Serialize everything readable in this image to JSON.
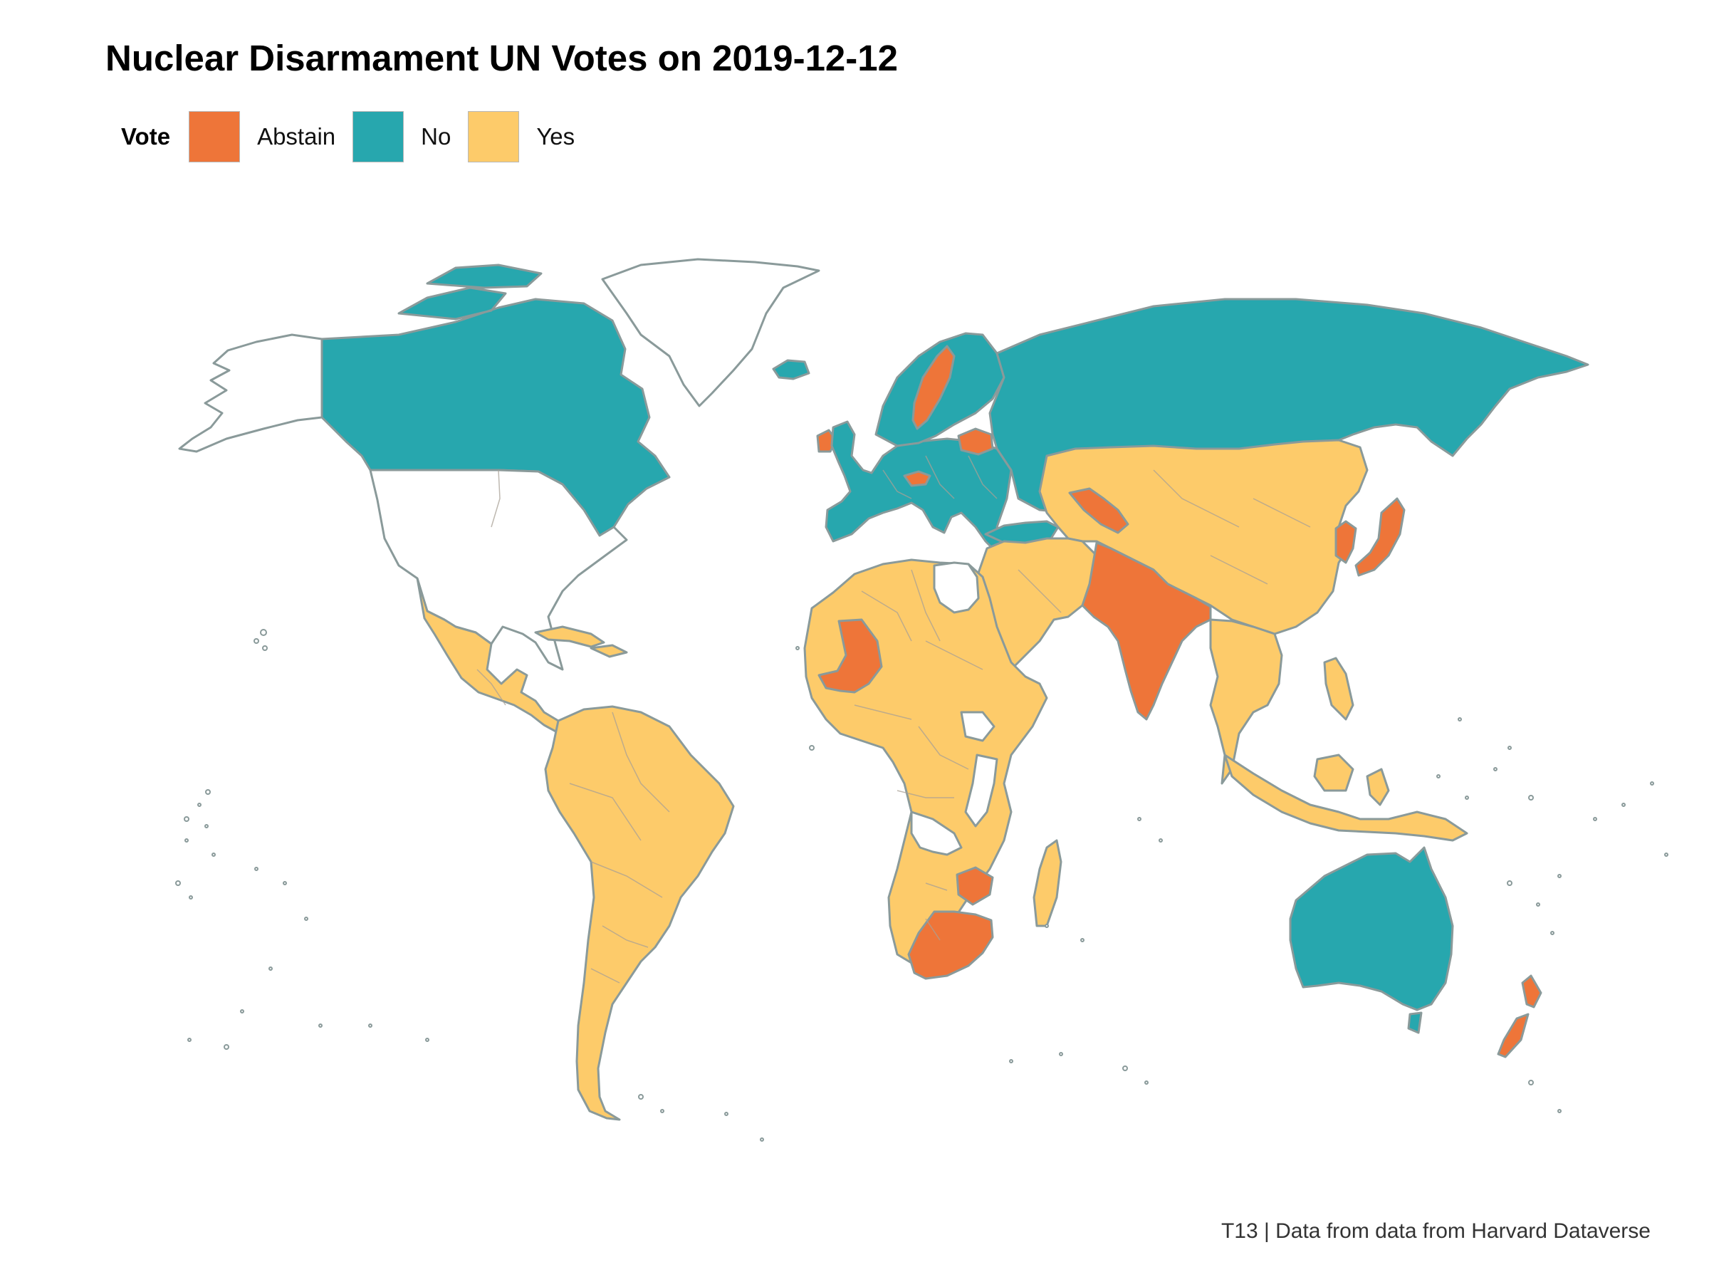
{
  "title": "Nuclear Disarmament UN Votes on 2019-12-12",
  "legend": {
    "title": "Vote",
    "items": [
      {
        "label": "Abstain",
        "color": "#EE7539"
      },
      {
        "label": "No",
        "color": "#27A7AE"
      },
      {
        "label": "Yes",
        "color": "#FDCB6A"
      }
    ]
  },
  "caption": "T13 | Data from data from Harvard Dataverse",
  "colors": {
    "border": "#8a9a9a",
    "missing": "#ffffff"
  },
  "regions": [
    {
      "name": "Alaska",
      "vote": null
    },
    {
      "name": "Canada",
      "vote": "No"
    },
    {
      "name": "Greenland",
      "vote": null
    },
    {
      "name": "United States",
      "vote": null
    },
    {
      "name": "Mexico and Central America",
      "vote": "Yes"
    },
    {
      "name": "Cuba",
      "vote": "Yes"
    },
    {
      "name": "South America",
      "vote": "Yes"
    },
    {
      "name": "Iceland",
      "vote": "No"
    },
    {
      "name": "Ireland",
      "vote": "Abstain"
    },
    {
      "name": "Western Europe",
      "vote": "No"
    },
    {
      "name": "Scandinavia",
      "vote": "No"
    },
    {
      "name": "Sweden",
      "vote": "Abstain"
    },
    {
      "name": "Belarus",
      "vote": "Abstain"
    },
    {
      "name": "Austria",
      "vote": "Abstain"
    },
    {
      "name": "Russia",
      "vote": "No"
    },
    {
      "name": "Turkey",
      "vote": "No"
    },
    {
      "name": "Central Asia, China and Mongolia",
      "vote": "Yes"
    },
    {
      "name": "Uzbekistan",
      "vote": "Abstain"
    },
    {
      "name": "Middle East",
      "vote": "Yes"
    },
    {
      "name": "India and Pakistan",
      "vote": "Abstain"
    },
    {
      "name": "Korea",
      "vote": "Abstain"
    },
    {
      "name": "Japan",
      "vote": "Abstain"
    },
    {
      "name": "Southeast Asia",
      "vote": "Yes"
    },
    {
      "name": "Indonesia and Philippines",
      "vote": "Yes"
    },
    {
      "name": "Africa",
      "vote": "Yes"
    },
    {
      "name": "Mali",
      "vote": "Abstain"
    },
    {
      "name": "Libya",
      "vote": null
    },
    {
      "name": "Horn and Central Africa gaps",
      "vote": null
    },
    {
      "name": "Zimbabwe",
      "vote": "Abstain"
    },
    {
      "name": "South Africa",
      "vote": "Abstain"
    },
    {
      "name": "Madagascar",
      "vote": "Yes"
    },
    {
      "name": "Australia",
      "vote": "No"
    },
    {
      "name": "New Zealand",
      "vote": "Abstain"
    }
  ]
}
